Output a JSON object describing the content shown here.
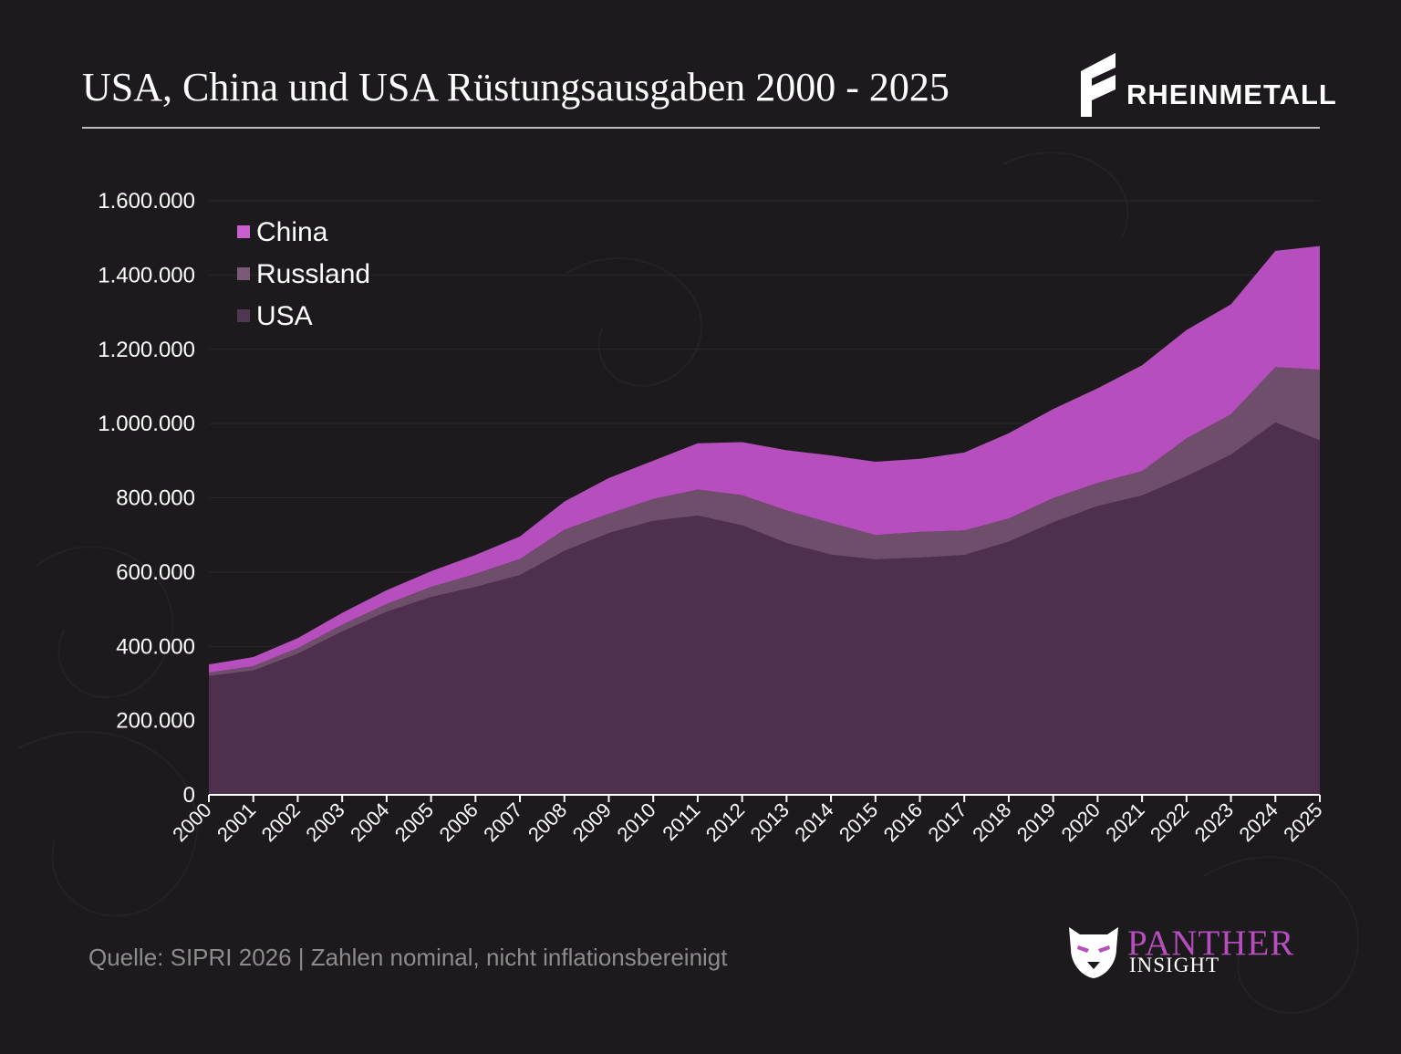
{
  "header": {
    "title": "USA, China und USA Rüstungsausgaben 2000 - 2025",
    "brand": "RHEINMETALL"
  },
  "footer": {
    "source": "Quelle: SIPRI 2026 | Zahlen nominal, nicht inflationsbereinigt"
  },
  "logo": {
    "name": "PANTHER",
    "subtitle": "INSIGHT",
    "icon": "panther-head-icon"
  },
  "colors": {
    "background": "#1d1a1e",
    "usa": "#4e2f4d",
    "russland": "#6f4e6c",
    "china": "#b64fbd",
    "china_legend": "#c75fcf",
    "russland_legend": "#7a5a77",
    "usa_legend": "#503650",
    "axis_text": "#ffffff",
    "footer_text": "#8c8c8c"
  },
  "chart_data": {
    "type": "area",
    "stacked": true,
    "title": "",
    "xlabel": "",
    "ylabel": "",
    "x": [
      "2000",
      "2001",
      "2002",
      "2003",
      "2004",
      "2005",
      "2006",
      "2007",
      "2008",
      "2009",
      "2010",
      "2011",
      "2012",
      "2013",
      "2014",
      "2015",
      "2016",
      "2017",
      "2018",
      "2019",
      "2020",
      "2021",
      "2022",
      "2023",
      "2024",
      "2025"
    ],
    "ylim": [
      0,
      1600000
    ],
    "yticks": [
      0,
      200000,
      400000,
      600000,
      800000,
      1000000,
      1200000,
      1400000,
      1600000
    ],
    "ytick_labels": [
      "0",
      "200.000",
      "400.000",
      "600.000",
      "800.000",
      "1.000.000",
      "1.200.000",
      "1.400.000",
      "1.600.000"
    ],
    "grid": true,
    "legend_position": "top-left",
    "legend_order": [
      "China",
      "Russland",
      "USA"
    ],
    "series": [
      {
        "name": "USA",
        "values": [
          320000,
          335000,
          380000,
          440000,
          493000,
          533000,
          560000,
          592000,
          657000,
          705000,
          738000,
          752000,
          726000,
          678000,
          647000,
          634000,
          639000,
          646000,
          682000,
          734000,
          778000,
          806000,
          858000,
          916000,
          1003000,
          955000
        ]
      },
      {
        "name": "Russland",
        "values": [
          9000,
          12000,
          15000,
          18000,
          21000,
          27000,
          35000,
          43000,
          57000,
          52000,
          59000,
          70000,
          81000,
          88000,
          85000,
          66000,
          69000,
          66000,
          62000,
          65000,
          62000,
          66000,
          102000,
          109000,
          149000,
          190000
        ]
      },
      {
        "name": "China",
        "values": [
          22000,
          24000,
          27000,
          32000,
          37000,
          42000,
          51000,
          61000,
          76000,
          96000,
          103000,
          125000,
          143000,
          162000,
          182000,
          197000,
          197000,
          210000,
          230000,
          240000,
          255000,
          285000,
          292000,
          296000,
          313000,
          333000
        ]
      }
    ]
  }
}
